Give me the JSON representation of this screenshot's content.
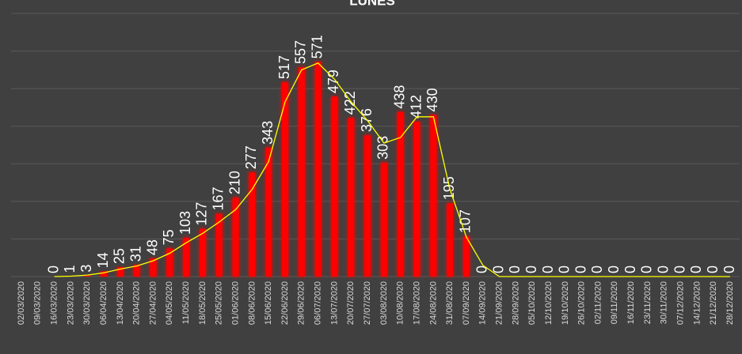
{
  "chart_data": {
    "type": "bar",
    "title": "LUNES",
    "categories": [
      "02/03/2020",
      "09/03/2020",
      "16/03/2020",
      "23/03/2020",
      "30/03/2020",
      "06/04/2020",
      "13/04/2020",
      "20/04/2020",
      "27/04/2020",
      "04/05/2020",
      "11/05/2020",
      "18/05/2020",
      "25/05/2020",
      "01/06/2020",
      "08/06/2020",
      "15/06/2020",
      "22/06/2020",
      "29/06/2020",
      "06/07/2020",
      "13/07/2020",
      "20/07/2020",
      "27/07/2020",
      "03/08/2020",
      "10/08/2020",
      "17/08/2020",
      "24/08/2020",
      "31/08/2020",
      "07/09/2020",
      "14/09/2020",
      "21/09/2020",
      "28/09/2020",
      "05/10/2020",
      "12/10/2020",
      "19/10/2020",
      "26/10/2020",
      "02/11/2020",
      "09/11/2020",
      "16/11/2020",
      "23/11/2020",
      "30/11/2020",
      "07/12/2020",
      "14/12/2020",
      "21/12/2020",
      "28/12/2020"
    ],
    "values": [
      null,
      null,
      0,
      1,
      3,
      14,
      25,
      31,
      48,
      75,
      103,
      127,
      167,
      210,
      277,
      343,
      517,
      557,
      571,
      479,
      422,
      376,
      303,
      438,
      412,
      430,
      195,
      107,
      0,
      0,
      0,
      0,
      0,
      0,
      0,
      0,
      0,
      0,
      0,
      0,
      0,
      0,
      0,
      0
    ],
    "color": "#ff0000",
    "trend": {
      "color": "#ffff00",
      "values": [
        null,
        null,
        0,
        1,
        4,
        10,
        20,
        28,
        42,
        62,
        90,
        115,
        145,
        178,
        232,
        306,
        465,
        550,
        568,
        525,
        465,
        415,
        355,
        370,
        425,
        425,
        232,
        105,
        30,
        0,
        0,
        0,
        0,
        0,
        0,
        0,
        0,
        0,
        0,
        0,
        0,
        0,
        0,
        0
      ]
    },
    "ylim": [
      0,
      700
    ],
    "yticks": [
      0,
      100,
      200,
      300,
      400,
      500,
      600,
      700
    ],
    "grid": true
  }
}
